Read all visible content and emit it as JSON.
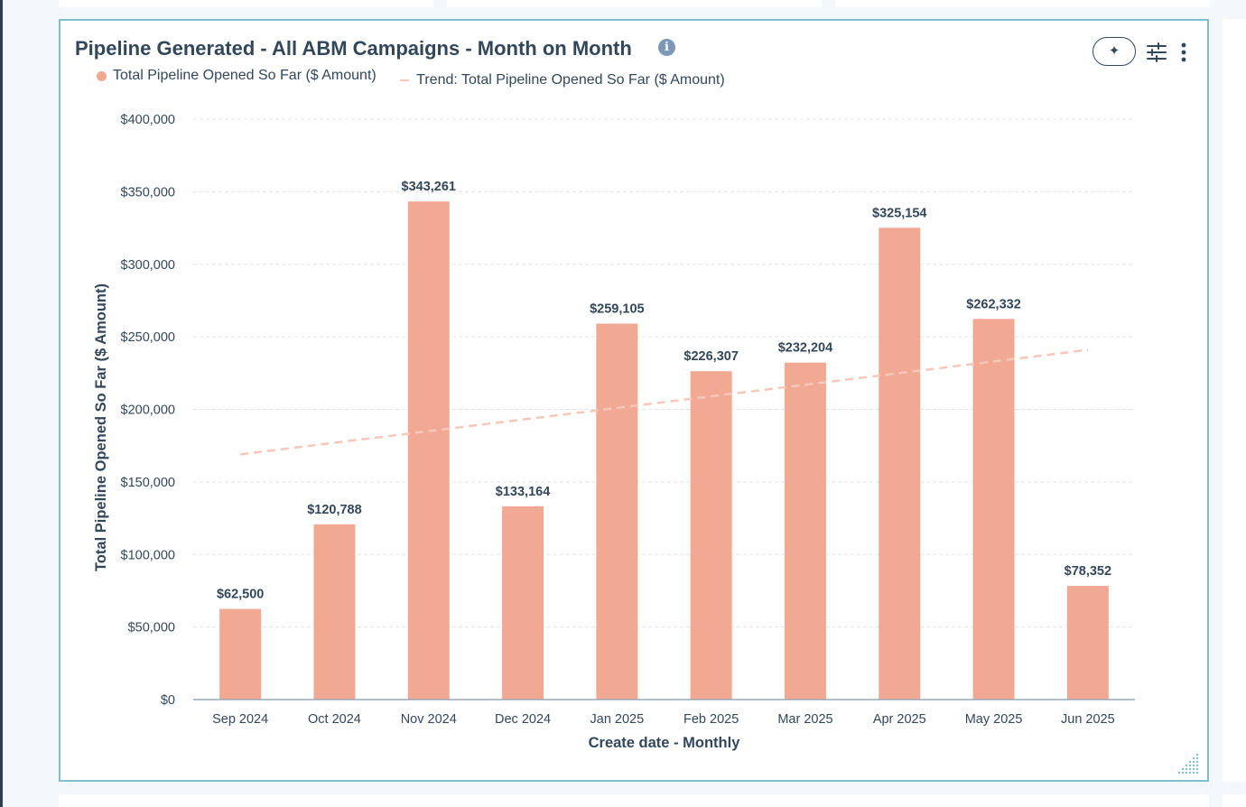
{
  "colors": {
    "bar": "#f2a993",
    "trend": "#f6c8b8",
    "accent_border": "#7fbfd0",
    "text": "#33475b"
  },
  "card": {
    "title": "Pipeline Generated - All ABM Campaigns - Month on Month",
    "info_icon_glyph": "i",
    "ai_button_glyph": "✦",
    "legend": [
      {
        "label": "Total Pipeline Opened So Far ($ Amount)",
        "marker": "dot"
      },
      {
        "label": "Trend: Total Pipeline Opened So Far ($ Amount)",
        "marker": "dash"
      }
    ]
  },
  "chart_data": {
    "type": "bar",
    "title": "Pipeline Generated - All ABM Campaigns - Month on Month",
    "xlabel": "Create date - Monthly",
    "ylabel": "Total Pipeline Opened So Far ($ Amount)",
    "ylim": [
      0,
      400000
    ],
    "yticks": [
      0,
      50000,
      100000,
      150000,
      200000,
      250000,
      300000,
      350000,
      400000
    ],
    "ytick_labels": [
      "$0",
      "$50,000",
      "$100,000",
      "$150,000",
      "$200,000",
      "$250,000",
      "$300,000",
      "$350,000",
      "$400,000"
    ],
    "categories": [
      "Sep 2024",
      "Oct 2024",
      "Nov 2024",
      "Dec 2024",
      "Jan 2025",
      "Feb 2025",
      "Mar 2025",
      "Apr 2025",
      "May 2025",
      "Jun 2025"
    ],
    "series": [
      {
        "name": "Total Pipeline Opened So Far ($ Amount)",
        "values": [
          62500,
          120788,
          343261,
          133164,
          259105,
          226307,
          232204,
          325154,
          262332,
          78352
        ],
        "labels": [
          "$62,500",
          "$120,788",
          "$343,261",
          "$133,164",
          "$259,105",
          "$226,307",
          "$232,204",
          "$325,154",
          "$262,332",
          "$78,352"
        ]
      }
    ],
    "trend": {
      "name": "Trend: Total Pipeline Opened So Far ($ Amount)",
      "start": 169000,
      "end": 241000
    },
    "grid": true,
    "legend_position": "top-left"
  }
}
